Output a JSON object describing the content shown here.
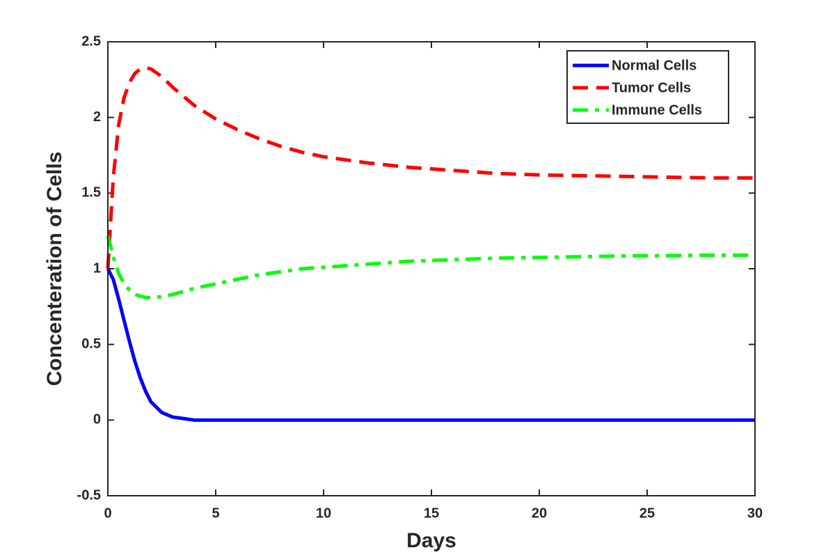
{
  "chart_data": {
    "type": "line",
    "xlabel": "Days",
    "ylabel": "Concenteration of Cells",
    "x": [
      0,
      0.25,
      0.5,
      0.75,
      1,
      1.25,
      1.5,
      1.75,
      2,
      2.5,
      3,
      3.5,
      4,
      5,
      6,
      7,
      8,
      9,
      10,
      12,
      14,
      16,
      18,
      20,
      22,
      24,
      26,
      28,
      30
    ],
    "series": [
      {
        "name": "Normal Cells",
        "color": "#0000ff",
        "dash": "solid",
        "values": [
          1,
          0.93,
          0.8,
          0.66,
          0.52,
          0.39,
          0.28,
          0.19,
          0.12,
          0.05,
          0.02,
          0.01,
          0,
          0,
          0,
          0,
          0,
          0,
          0,
          0,
          0,
          0,
          0,
          0,
          0,
          0,
          0,
          0,
          0
        ]
      },
      {
        "name": "Tumor Cells",
        "color": "#ff0000",
        "dash": "dashed",
        "values": [
          1,
          1.6,
          1.95,
          2.13,
          2.23,
          2.29,
          2.32,
          2.33,
          2.32,
          2.27,
          2.2,
          2.14,
          2.08,
          1.99,
          1.92,
          1.86,
          1.81,
          1.77,
          1.74,
          1.7,
          1.67,
          1.65,
          1.63,
          1.62,
          1.615,
          1.61,
          1.605,
          1.6,
          1.6
        ]
      },
      {
        "name": "Immune Cells",
        "color": "#00ff00",
        "dash": "dashdot",
        "values": [
          1.22,
          1.08,
          0.97,
          0.9,
          0.86,
          0.83,
          0.82,
          0.81,
          0.81,
          0.815,
          0.83,
          0.85,
          0.87,
          0.9,
          0.93,
          0.96,
          0.98,
          1.0,
          1.01,
          1.03,
          1.05,
          1.06,
          1.07,
          1.075,
          1.08,
          1.085,
          1.087,
          1.09,
          1.09
        ]
      }
    ],
    "xlim": [
      0,
      30
    ],
    "xticks": [
      0,
      5,
      10,
      15,
      20,
      25,
      30
    ],
    "ylim": [
      -0.5,
      2.5
    ],
    "yticks": [
      -0.5,
      0,
      0.5,
      1,
      1.5,
      2,
      2.5
    ],
    "legend": "upper right",
    "grid": false
  }
}
